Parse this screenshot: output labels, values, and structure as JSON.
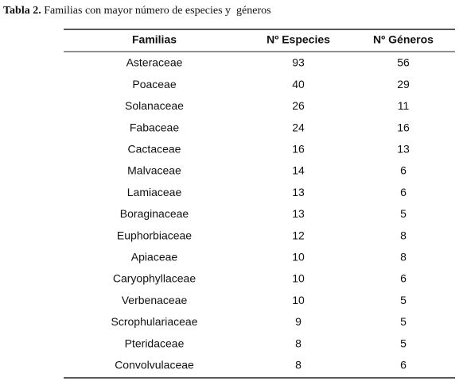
{
  "caption": {
    "label": "Tabla 2.",
    "text": "Familias con mayor número de especies y  géneros"
  },
  "table": {
    "headers": [
      "Familias",
      "Nº Especies",
      "Nº Géneros"
    ],
    "rows": [
      [
        "Asteraceae",
        93,
        56
      ],
      [
        "Poaceae",
        40,
        29
      ],
      [
        "Solanaceae",
        26,
        11
      ],
      [
        "Fabaceae",
        24,
        16
      ],
      [
        "Cactaceae",
        16,
        13
      ],
      [
        "Malvaceae",
        14,
        6
      ],
      [
        "Lamiaceae",
        13,
        6
      ],
      [
        "Boraginaceae",
        13,
        5
      ],
      [
        "Euphorbiaceae",
        12,
        8
      ],
      [
        "Apiaceae",
        10,
        8
      ],
      [
        "Caryophyllaceae",
        10,
        6
      ],
      [
        "Verbenaceae",
        10,
        5
      ],
      [
        "Scrophulariaceae",
        9,
        5
      ],
      [
        "Pteridaceae",
        8,
        5
      ],
      [
        "Convolvulaceae",
        8,
        6
      ]
    ]
  }
}
